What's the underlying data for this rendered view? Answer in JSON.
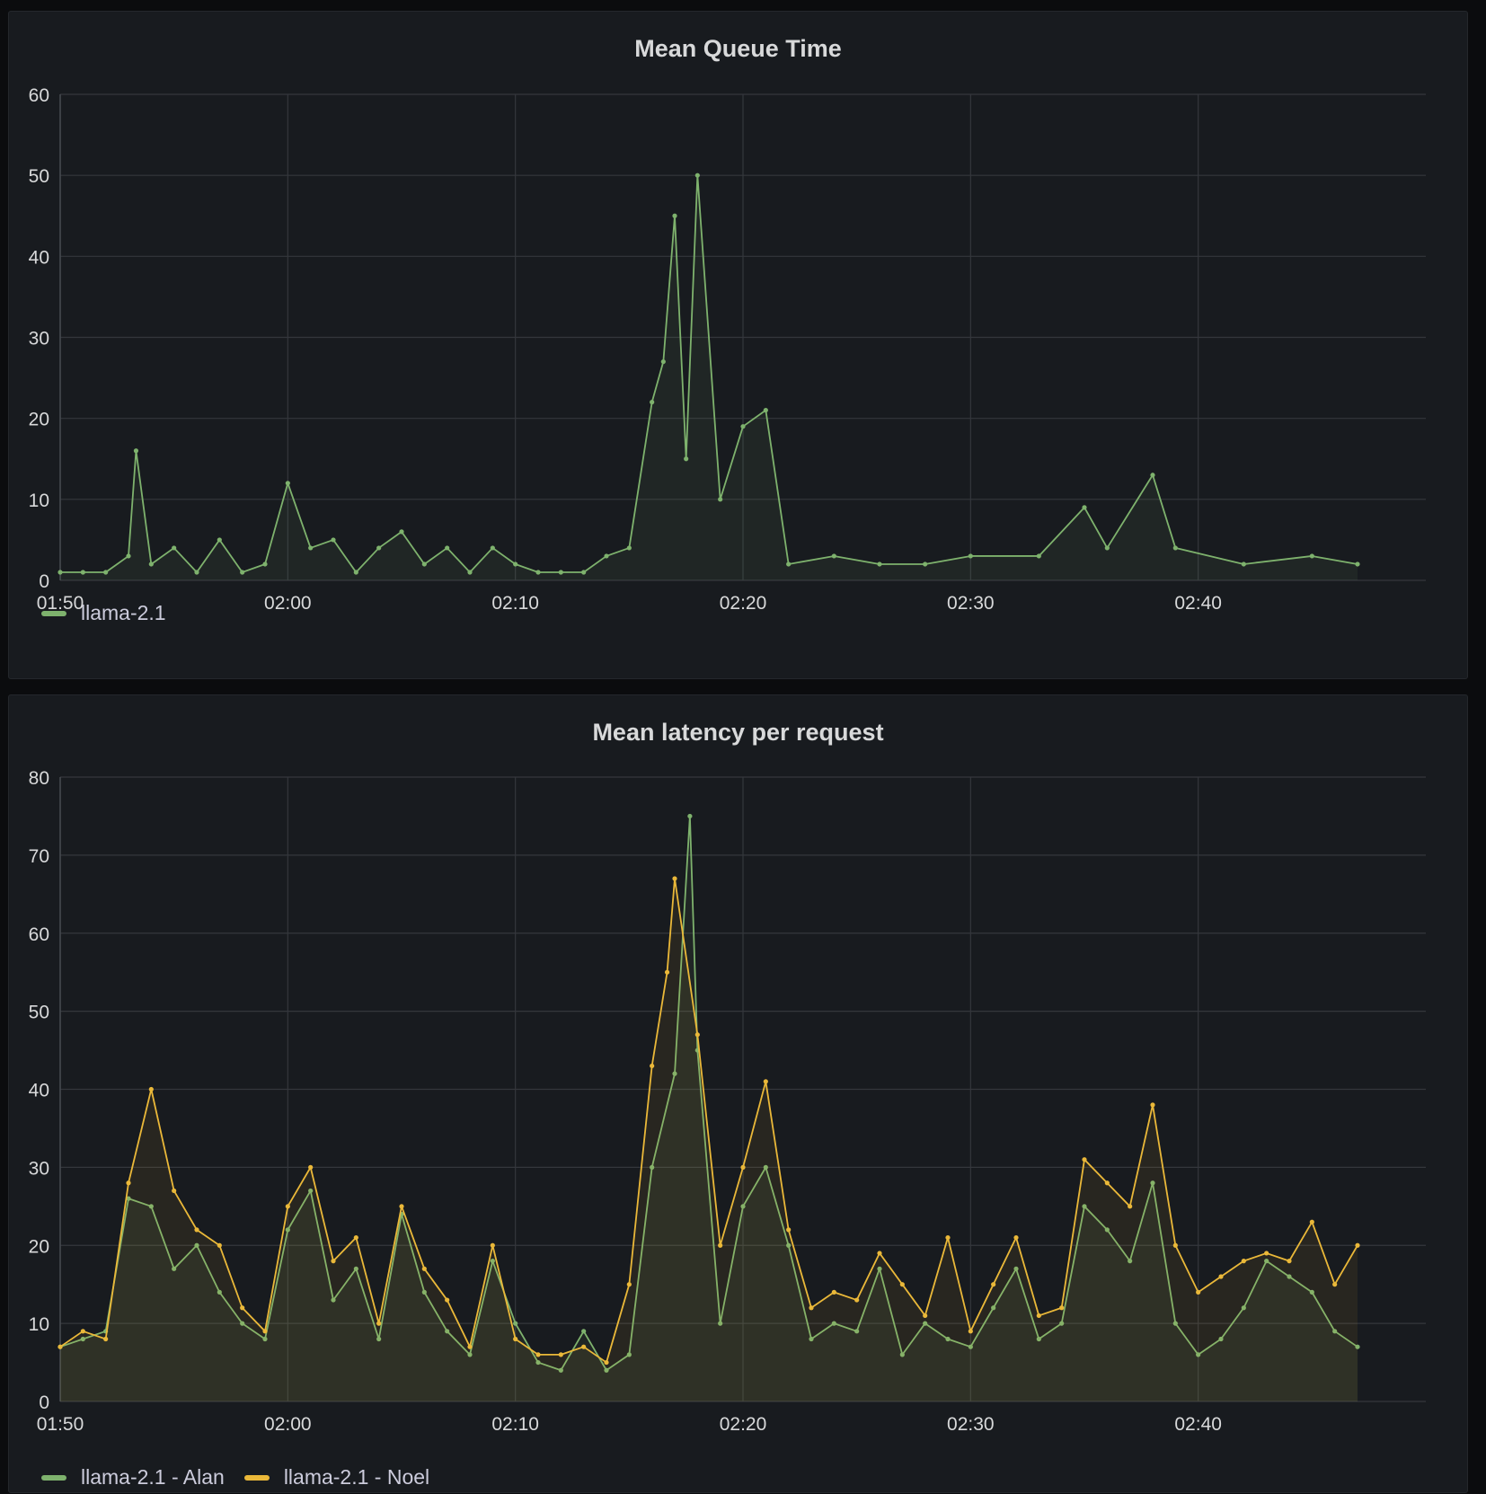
{
  "colors": {
    "alan": "#7eb26d",
    "noel": "#eab839",
    "grid": "#34373c",
    "axis_text": "#d8d9da"
  },
  "panels": [
    {
      "title": "Mean Queue Time",
      "legend": [
        {
          "label": "llama-2.1",
          "color": "#7eb26d"
        }
      ]
    },
    {
      "title": "Mean latency per request",
      "legend": [
        {
          "label": "llama-2.1 - Alan",
          "color": "#7eb26d"
        },
        {
          "label": "llama-2.1 - Noel",
          "color": "#eab839"
        }
      ]
    }
  ],
  "chart_data": [
    {
      "type": "line",
      "title": "Mean Queue Time",
      "xlabel": "",
      "ylabel": "",
      "x_ticks": [
        "01:50",
        "02:00",
        "02:10",
        "02:20",
        "02:30",
        "02:40"
      ],
      "y_ticks": [
        0,
        10,
        20,
        30,
        40,
        50,
        60
      ],
      "xlim": [
        "01:50",
        "02:50"
      ],
      "ylim": [
        0,
        60
      ],
      "grid": true,
      "legend_position": "bottom-left",
      "series": [
        {
          "name": "llama-2.1",
          "color": "#7eb26d",
          "points": [
            [
              "01:50",
              1
            ],
            [
              "01:51",
              1
            ],
            [
              "01:52",
              1
            ],
            [
              "01:53",
              3
            ],
            [
              "01:53:20",
              16
            ],
            [
              "01:54",
              2
            ],
            [
              "01:55",
              4
            ],
            [
              "01:56",
              1
            ],
            [
              "01:57",
              5
            ],
            [
              "01:58",
              1
            ],
            [
              "01:59",
              2
            ],
            [
              "02:00",
              12
            ],
            [
              "02:01",
              4
            ],
            [
              "02:02",
              5
            ],
            [
              "02:03",
              1
            ],
            [
              "02:04",
              4
            ],
            [
              "02:05",
              6
            ],
            [
              "02:06",
              2
            ],
            [
              "02:07",
              4
            ],
            [
              "02:08",
              1
            ],
            [
              "02:09",
              4
            ],
            [
              "02:10",
              2
            ],
            [
              "02:11",
              1
            ],
            [
              "02:12",
              1
            ],
            [
              "02:13",
              1
            ],
            [
              "02:14",
              3
            ],
            [
              "02:15",
              4
            ],
            [
              "02:16",
              22
            ],
            [
              "02:16:30",
              27
            ],
            [
              "02:17",
              45
            ],
            [
              "02:17:30",
              15
            ],
            [
              "02:18",
              50
            ],
            [
              "02:19",
              10
            ],
            [
              "02:20",
              19
            ],
            [
              "02:21",
              21
            ],
            [
              "02:22",
              2
            ],
            [
              "02:24",
              3
            ],
            [
              "02:26",
              2
            ],
            [
              "02:28",
              2
            ],
            [
              "02:30",
              3
            ],
            [
              "02:33",
              3
            ],
            [
              "02:35",
              9
            ],
            [
              "02:36",
              4
            ],
            [
              "02:38",
              13
            ],
            [
              "02:39",
              4
            ],
            [
              "02:42",
              2
            ],
            [
              "02:45",
              3
            ],
            [
              "02:47",
              2
            ]
          ]
        }
      ]
    },
    {
      "type": "line",
      "title": "Mean latency per request",
      "xlabel": "",
      "ylabel": "",
      "x_ticks": [
        "01:50",
        "02:00",
        "02:10",
        "02:20",
        "02:30",
        "02:40"
      ],
      "y_ticks": [
        0,
        10,
        20,
        30,
        40,
        50,
        60,
        70,
        80
      ],
      "xlim": [
        "01:50",
        "02:50"
      ],
      "ylim": [
        0,
        80
      ],
      "grid": true,
      "legend_position": "bottom-left",
      "series": [
        {
          "name": "llama-2.1 - Alan",
          "color": "#7eb26d",
          "points": [
            [
              "01:50",
              7
            ],
            [
              "01:51",
              8
            ],
            [
              "01:52",
              9
            ],
            [
              "01:53",
              26
            ],
            [
              "01:54",
              25
            ],
            [
              "01:55",
              17
            ],
            [
              "01:56",
              20
            ],
            [
              "01:57",
              14
            ],
            [
              "01:58",
              10
            ],
            [
              "01:59",
              8
            ],
            [
              "02:00",
              22
            ],
            [
              "02:01",
              27
            ],
            [
              "02:02",
              13
            ],
            [
              "02:03",
              17
            ],
            [
              "02:04",
              8
            ],
            [
              "02:05",
              24
            ],
            [
              "02:06",
              14
            ],
            [
              "02:07",
              9
            ],
            [
              "02:08",
              6
            ],
            [
              "02:09",
              18
            ],
            [
              "02:10",
              10
            ],
            [
              "02:11",
              5
            ],
            [
              "02:12",
              4
            ],
            [
              "02:13",
              9
            ],
            [
              "02:14",
              4
            ],
            [
              "02:15",
              6
            ],
            [
              "02:16",
              30
            ],
            [
              "02:17",
              42
            ],
            [
              "02:17:40",
              75
            ],
            [
              "02:18",
              45
            ],
            [
              "02:19",
              10
            ],
            [
              "02:20",
              25
            ],
            [
              "02:21",
              30
            ],
            [
              "02:22",
              20
            ],
            [
              "02:23",
              8
            ],
            [
              "02:24",
              10
            ],
            [
              "02:25",
              9
            ],
            [
              "02:26",
              17
            ],
            [
              "02:27",
              6
            ],
            [
              "02:28",
              10
            ],
            [
              "02:29",
              8
            ],
            [
              "02:30",
              7
            ],
            [
              "02:31",
              12
            ],
            [
              "02:32",
              17
            ],
            [
              "02:33",
              8
            ],
            [
              "02:34",
              10
            ],
            [
              "02:35",
              25
            ],
            [
              "02:36",
              22
            ],
            [
              "02:37",
              18
            ],
            [
              "02:38",
              28
            ],
            [
              "02:39",
              10
            ],
            [
              "02:40",
              6
            ],
            [
              "02:41",
              8
            ],
            [
              "02:42",
              12
            ],
            [
              "02:43",
              18
            ],
            [
              "02:44",
              16
            ],
            [
              "02:45",
              14
            ],
            [
              "02:46",
              9
            ],
            [
              "02:47",
              7
            ]
          ]
        },
        {
          "name": "llama-2.1 - Noel",
          "color": "#eab839",
          "points": [
            [
              "01:50",
              7
            ],
            [
              "01:51",
              9
            ],
            [
              "01:52",
              8
            ],
            [
              "01:53",
              28
            ],
            [
              "01:54",
              40
            ],
            [
              "01:55",
              27
            ],
            [
              "01:56",
              22
            ],
            [
              "01:57",
              20
            ],
            [
              "01:58",
              12
            ],
            [
              "01:59",
              9
            ],
            [
              "02:00",
              25
            ],
            [
              "02:01",
              30
            ],
            [
              "02:02",
              18
            ],
            [
              "02:03",
              21
            ],
            [
              "02:04",
              10
            ],
            [
              "02:05",
              25
            ],
            [
              "02:06",
              17
            ],
            [
              "02:07",
              13
            ],
            [
              "02:08",
              7
            ],
            [
              "02:09",
              20
            ],
            [
              "02:10",
              8
            ],
            [
              "02:11",
              6
            ],
            [
              "02:12",
              6
            ],
            [
              "02:13",
              7
            ],
            [
              "02:14",
              5
            ],
            [
              "02:15",
              15
            ],
            [
              "02:16",
              43
            ],
            [
              "02:16:40",
              55
            ],
            [
              "02:17",
              67
            ],
            [
              "02:18",
              47
            ],
            [
              "02:19",
              20
            ],
            [
              "02:20",
              30
            ],
            [
              "02:21",
              41
            ],
            [
              "02:22",
              22
            ],
            [
              "02:23",
              12
            ],
            [
              "02:24",
              14
            ],
            [
              "02:25",
              13
            ],
            [
              "02:26",
              19
            ],
            [
              "02:27",
              15
            ],
            [
              "02:28",
              11
            ],
            [
              "02:29",
              21
            ],
            [
              "02:30",
              9
            ],
            [
              "02:31",
              15
            ],
            [
              "02:32",
              21
            ],
            [
              "02:33",
              11
            ],
            [
              "02:34",
              12
            ],
            [
              "02:35",
              31
            ],
            [
              "02:36",
              28
            ],
            [
              "02:37",
              25
            ],
            [
              "02:38",
              38
            ],
            [
              "02:39",
              20
            ],
            [
              "02:40",
              14
            ],
            [
              "02:41",
              16
            ],
            [
              "02:42",
              18
            ],
            [
              "02:43",
              19
            ],
            [
              "02:44",
              18
            ],
            [
              "02:45",
              23
            ],
            [
              "02:46",
              15
            ],
            [
              "02:47",
              20
            ]
          ]
        }
      ]
    }
  ]
}
